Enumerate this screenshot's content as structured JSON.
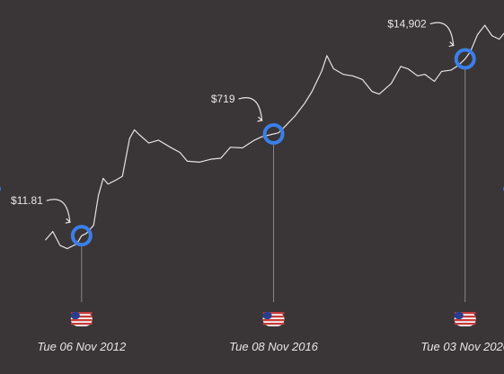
{
  "chart_data": {
    "type": "line",
    "ylabel": "",
    "xlabel": "",
    "series": [
      {
        "values": [
          [
            2012.1,
            10
          ],
          [
            2012.25,
            14
          ],
          [
            2012.4,
            8
          ],
          [
            2012.55,
            7
          ],
          [
            2012.75,
            8.5
          ],
          [
            2012.85,
            11.81
          ],
          [
            2012.95,
            13
          ],
          [
            2013.1,
            18
          ],
          [
            2013.2,
            60
          ],
          [
            2013.3,
            120
          ],
          [
            2013.4,
            95
          ],
          [
            2013.55,
            110
          ],
          [
            2013.7,
            130
          ],
          [
            2013.85,
            600
          ],
          [
            2013.95,
            850
          ],
          [
            2014.05,
            700
          ],
          [
            2014.25,
            500
          ],
          [
            2014.45,
            560
          ],
          [
            2014.7,
            420
          ],
          [
            2014.9,
            340
          ],
          [
            2015.05,
            240
          ],
          [
            2015.3,
            230
          ],
          [
            2015.55,
            260
          ],
          [
            2015.75,
            270
          ],
          [
            2015.95,
            420
          ],
          [
            2016.2,
            410
          ],
          [
            2016.45,
            560
          ],
          [
            2016.6,
            640
          ],
          [
            2016.85,
            719
          ],
          [
            2016.95,
            750
          ],
          [
            2017.1,
            1000
          ],
          [
            2017.3,
            1500
          ],
          [
            2017.5,
            2500
          ],
          [
            2017.65,
            4000
          ],
          [
            2017.85,
            9000
          ],
          [
            2017.96,
            17000
          ],
          [
            2018.1,
            10000
          ],
          [
            2018.3,
            8000
          ],
          [
            2018.5,
            7500
          ],
          [
            2018.7,
            6500
          ],
          [
            2018.9,
            4000
          ],
          [
            2019.05,
            3600
          ],
          [
            2019.3,
            5500
          ],
          [
            2019.5,
            11000
          ],
          [
            2019.65,
            10000
          ],
          [
            2019.85,
            7500
          ],
          [
            2020.0,
            8000
          ],
          [
            2020.2,
            6000
          ],
          [
            2020.35,
            9000
          ],
          [
            2020.55,
            9500
          ],
          [
            2020.7,
            11500
          ],
          [
            2020.84,
            14902
          ],
          [
            2020.95,
            20000
          ],
          [
            2021.1,
            40000
          ],
          [
            2021.25,
            58000
          ],
          [
            2021.4,
            38000
          ],
          [
            2021.55,
            33000
          ],
          [
            2021.7,
            47000
          ],
          [
            2021.85,
            63000
          ],
          [
            2021.95,
            50000
          ]
        ]
      }
    ],
    "annotations": [
      {
        "x": 2012.85,
        "y": 11.81,
        "label": "$11.81",
        "date": "Tue 06 Nov 2012"
      },
      {
        "x": 2016.85,
        "y": 719,
        "label": "$719",
        "date": "Tue 08 Nov 2016"
      },
      {
        "x": 2020.84,
        "y": 14902,
        "label": "$14,902",
        "date": "Tue 03 Nov 2020"
      }
    ],
    "yscale": "log",
    "xlim": [
      2011.15,
      2021.65
    ],
    "ylim": [
      4,
      90000
    ],
    "grid": false
  },
  "colors": {
    "background": "#3a3537",
    "line": "#e7e3e5",
    "marker": "#3b7fe8",
    "guide": "#8b8689",
    "text": "#e9e6e7",
    "flag_red": "#c83b3b",
    "flag_white": "#f6f6f6",
    "flag_blue": "#2a3d8f"
  },
  "icons": {
    "flag": "us-flag-icon",
    "marker": "circle-marker-icon"
  }
}
